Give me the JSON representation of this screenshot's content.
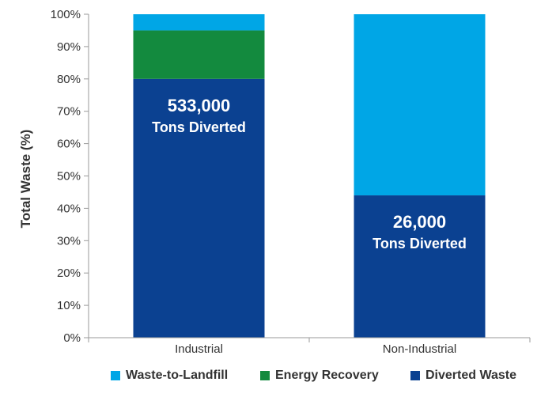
{
  "chart_data": {
    "type": "bar",
    "stacked": true,
    "normalized": true,
    "title": "",
    "xlabel": "",
    "ylabel": "Total Waste (%)",
    "ylim": [
      0,
      100
    ],
    "yticks": [
      "0%",
      "10%",
      "20%",
      "30%",
      "40%",
      "50%",
      "60%",
      "70%",
      "80%",
      "90%",
      "100%"
    ],
    "categories": [
      "Industrial",
      "Non-Industrial"
    ],
    "series": [
      {
        "name": "Diverted Waste",
        "color": "#0b4191",
        "values": [
          80,
          44
        ]
      },
      {
        "name": "Energy Recovery",
        "color": "#138a3e",
        "values": [
          15,
          0
        ]
      },
      {
        "name": "Waste-to-Landfill",
        "color": "#00a6e6",
        "values": [
          5,
          56
        ]
      }
    ],
    "annotations": [
      {
        "category": "Industrial",
        "value": "533,000",
        "text": "Tons Diverted"
      },
      {
        "category": "Non-Industrial",
        "value": "26,000",
        "text": "Tons Diverted"
      }
    ],
    "legend": {
      "position": "bottom",
      "items": [
        "Waste-to-Landfill",
        "Energy Recovery",
        "Diverted Waste"
      ]
    },
    "grid": false
  }
}
